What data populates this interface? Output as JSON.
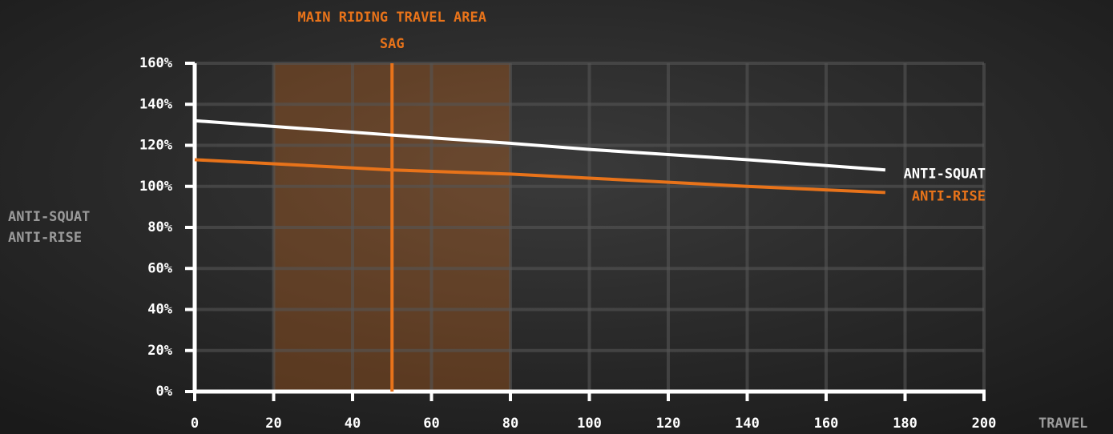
{
  "chart_data": {
    "type": "line",
    "x": [
      0,
      50,
      80,
      100,
      140,
      175
    ],
    "series": [
      {
        "name": "ANTI-SQUAT",
        "color": "#ffffff",
        "values": [
          132,
          125,
          121,
          118,
          113,
          108
        ]
      },
      {
        "name": "ANTI-RISE",
        "color": "#e8731a",
        "values": [
          113,
          108,
          106,
          104,
          100,
          97
        ]
      }
    ],
    "xlim": [
      0,
      200
    ],
    "xticks": [
      0,
      20,
      40,
      60,
      80,
      100,
      120,
      140,
      160,
      180,
      200
    ],
    "ylim": [
      0,
      160
    ],
    "yticks": [
      {
        "value": 0,
        "label": "0%"
      },
      {
        "value": 20,
        "label": "20%"
      },
      {
        "value": 40,
        "label": "40%"
      },
      {
        "value": 60,
        "label": "60%"
      },
      {
        "value": 80,
        "label": "80%"
      },
      {
        "value": 100,
        "label": "100%"
      },
      {
        "value": 120,
        "label": "120%"
      },
      {
        "value": 140,
        "label": "140%"
      },
      {
        "value": 160,
        "label": "160%"
      }
    ],
    "x_label": "TRAVEL",
    "y_label": [
      "ANTI-SQUAT",
      "ANTI-RISE"
    ],
    "grid": true,
    "shaded_region": {
      "x": [
        20,
        80
      ],
      "label": "MAIN RIDING TRAVEL AREA",
      "color": "#e8731a"
    },
    "vline": {
      "x": 50,
      "label": "SAG",
      "color": "#e8731a"
    }
  }
}
